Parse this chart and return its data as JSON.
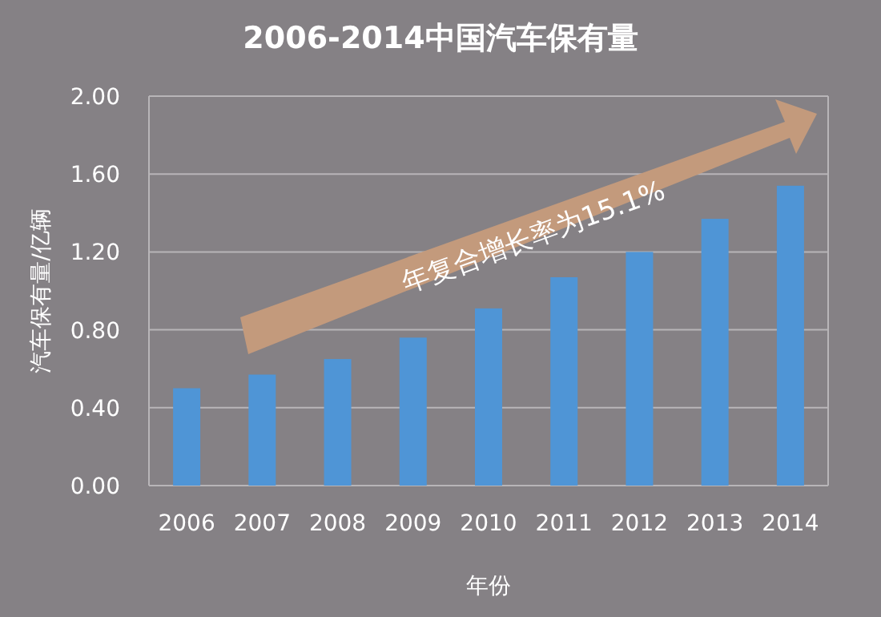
{
  "chart_data": {
    "type": "bar",
    "title": "2006-2014中国汽车保有量",
    "xlabel": "年份",
    "ylabel": "汽车保有量/亿辆",
    "categories": [
      "2006",
      "2007",
      "2008",
      "2009",
      "2010",
      "2011",
      "2012",
      "2013",
      "2014"
    ],
    "values": [
      0.5,
      0.57,
      0.65,
      0.76,
      0.91,
      1.07,
      1.2,
      1.37,
      1.54
    ],
    "color": "#4f95d6",
    "ylim": [
      0,
      2
    ],
    "yticks": [
      {
        "value": 0,
        "label": "0.00"
      },
      {
        "value": 0.4,
        "label": "0.40"
      },
      {
        "value": 0.8,
        "label": "0.80"
      },
      {
        "value": 1.2,
        "label": "1.20"
      },
      {
        "value": 1.6,
        "label": "1.60"
      },
      {
        "value": 2,
        "label": "2.00"
      }
    ],
    "grid": "y",
    "annotations": [
      "年复合增长率为15.1%"
    ]
  }
}
